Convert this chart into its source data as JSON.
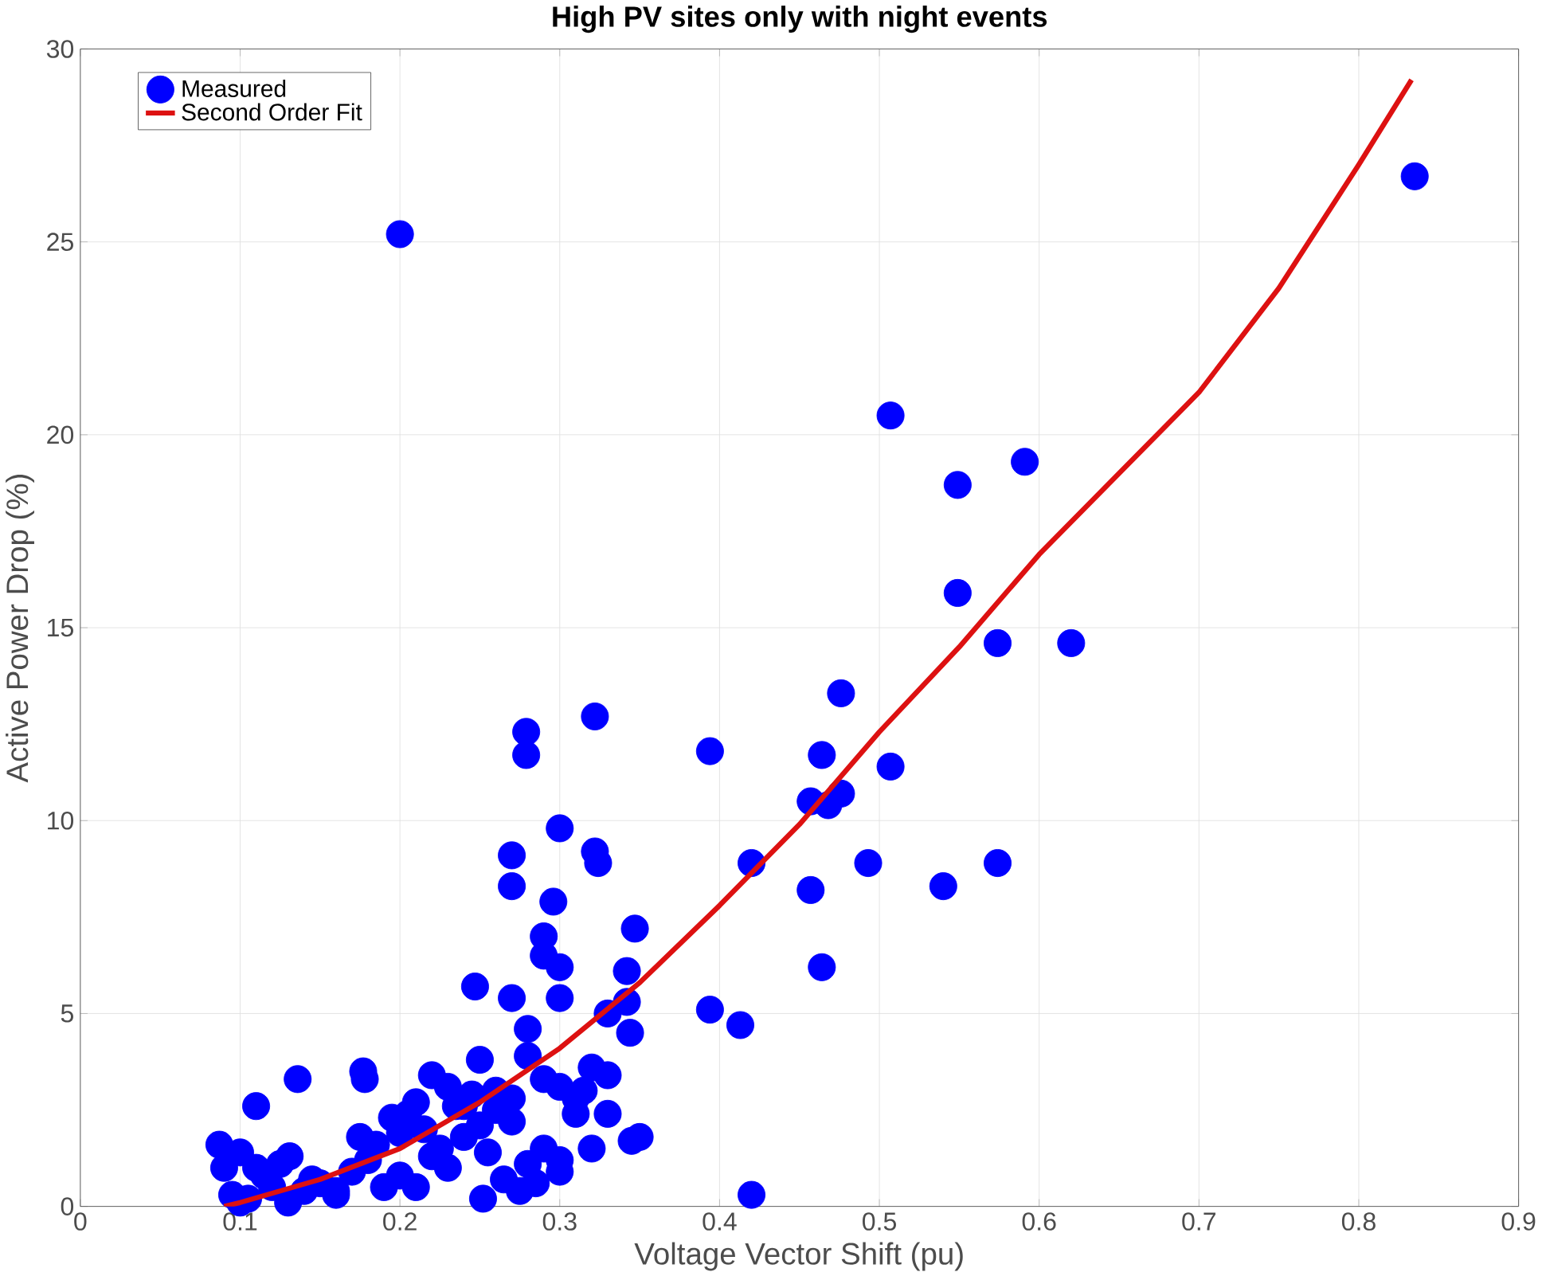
{
  "chart_data": {
    "type": "scatter",
    "title": "High PV sites only with night events",
    "xlabel": "Voltage Vector Shift (pu)",
    "ylabel": "Active Power Drop (%)",
    "xlim": [
      0,
      0.9
    ],
    "xticks": [
      0,
      0.1,
      0.2,
      0.3,
      0.4,
      0.5,
      0.6,
      0.7,
      0.8,
      0.9
    ],
    "ylim": [
      0,
      30
    ],
    "yticks": [
      0,
      5,
      10,
      15,
      20,
      25,
      30
    ],
    "grid": true,
    "legend": "top left",
    "series": [
      {
        "name": "Measured",
        "marker": "circle",
        "color": "#0000ff",
        "x": [
          0.2,
          0.835,
          0.507,
          0.549,
          0.591,
          0.549,
          0.574,
          0.62,
          0.476,
          0.464,
          0.507,
          0.457,
          0.468,
          0.476,
          0.394,
          0.42,
          0.457,
          0.493,
          0.54,
          0.574,
          0.394,
          0.413,
          0.42,
          0.464,
          0.322,
          0.279,
          0.279,
          0.3,
          0.27,
          0.27,
          0.296,
          0.322,
          0.324,
          0.347,
          0.29,
          0.3,
          0.29,
          0.342,
          0.3,
          0.33,
          0.344,
          0.342,
          0.247,
          0.27,
          0.28,
          0.35,
          0.345,
          0.252,
          0.136,
          0.178,
          0.11,
          0.087,
          0.09,
          0.095,
          0.1,
          0.131,
          0.177,
          0.12,
          0.105,
          0.115,
          0.125,
          0.14,
          0.15,
          0.16,
          0.17,
          0.18,
          0.19,
          0.2,
          0.21,
          0.22,
          0.23,
          0.24,
          0.25,
          0.26,
          0.27,
          0.28,
          0.29,
          0.3,
          0.31,
          0.32,
          0.33,
          0.2,
          0.21,
          0.22,
          0.23,
          0.24,
          0.25,
          0.26,
          0.27,
          0.28,
          0.29,
          0.3,
          0.31,
          0.32,
          0.185,
          0.195,
          0.205,
          0.215,
          0.225,
          0.235,
          0.245,
          0.255,
          0.265,
          0.275,
          0.285,
          0.3,
          0.315,
          0.33,
          0.16,
          0.145,
          0.175,
          0.13,
          0.1,
          0.11
        ],
        "values": [
          25.2,
          26.7,
          20.5,
          18.7,
          19.3,
          15.9,
          14.6,
          14.6,
          13.3,
          11.7,
          11.4,
          10.5,
          10.4,
          10.7,
          11.8,
          8.9,
          8.2,
          8.9,
          8.3,
          8.9,
          5.1,
          4.7,
          0.3,
          6.2,
          12.7,
          12.3,
          11.7,
          9.8,
          9.1,
          8.3,
          7.9,
          9.2,
          8.9,
          7.2,
          7.0,
          6.2,
          6.5,
          6.1,
          5.4,
          5.0,
          4.5,
          5.3,
          5.7,
          5.4,
          4.6,
          1.8,
          1.7,
          0.2,
          3.3,
          3.3,
          2.6,
          1.6,
          1.0,
          0.3,
          0.1,
          1.3,
          3.5,
          0.5,
          0.2,
          0.8,
          1.1,
          0.4,
          0.6,
          0.3,
          0.9,
          1.2,
          0.5,
          1.9,
          2.7,
          3.4,
          3.1,
          2.6,
          3.8,
          3.0,
          2.8,
          3.9,
          3.3,
          3.1,
          2.4,
          3.6,
          2.4,
          0.8,
          0.5,
          1.3,
          1.0,
          1.8,
          2.1,
          2.5,
          2.2,
          1.1,
          1.5,
          0.9,
          2.8,
          1.5,
          1.6,
          2.3,
          2.4,
          2.0,
          1.5,
          2.6,
          2.9,
          1.4,
          0.7,
          0.4,
          0.6,
          1.2,
          3.0,
          3.4,
          0.4,
          0.7,
          1.8,
          0.1,
          1.4,
          1.0
        ]
      },
      {
        "name": "Second Order Fit",
        "type": "line",
        "marker": "none",
        "line_style": "solid",
        "color": "#dd1111",
        "x": [
          0.09,
          0.1,
          0.15,
          0.2,
          0.25,
          0.3,
          0.35,
          0.4,
          0.45,
          0.5,
          0.55,
          0.6,
          0.65,
          0.7,
          0.75,
          0.8,
          0.833
        ],
        "values": [
          0.0,
          0.1,
          0.7,
          1.5,
          2.7,
          4.1,
          5.8,
          7.8,
          9.9,
          12.3,
          14.5,
          16.9,
          19.0,
          21.1,
          23.8,
          27.0,
          29.2
        ]
      }
    ]
  }
}
